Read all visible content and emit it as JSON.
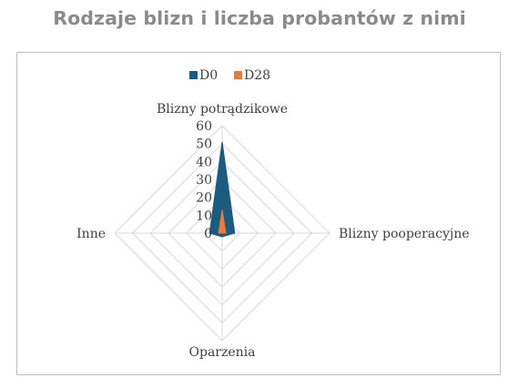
{
  "title": "Rodzaje blizn i liczba probantów z nimi",
  "chart_data": {
    "type": "radar",
    "title": "Rodzaje blizn i liczba probantów z nimi",
    "axes": [
      "Blizny potrądzikowe",
      "Blizny pooperacyjne",
      "Oparzenia",
      "Inne"
    ],
    "rlim": [
      0,
      60
    ],
    "ticks": [
      "0",
      "10",
      "20",
      "30",
      "40",
      "50",
      "60"
    ],
    "series": [
      {
        "name": "D0",
        "color": "#1a5b7e",
        "values": [
          51,
          7,
          2,
          7
        ]
      },
      {
        "name": "D28",
        "color": "#e97a3a",
        "values": [
          13,
          2,
          0,
          2
        ]
      }
    ],
    "legend_position": "top",
    "grid": true
  }
}
